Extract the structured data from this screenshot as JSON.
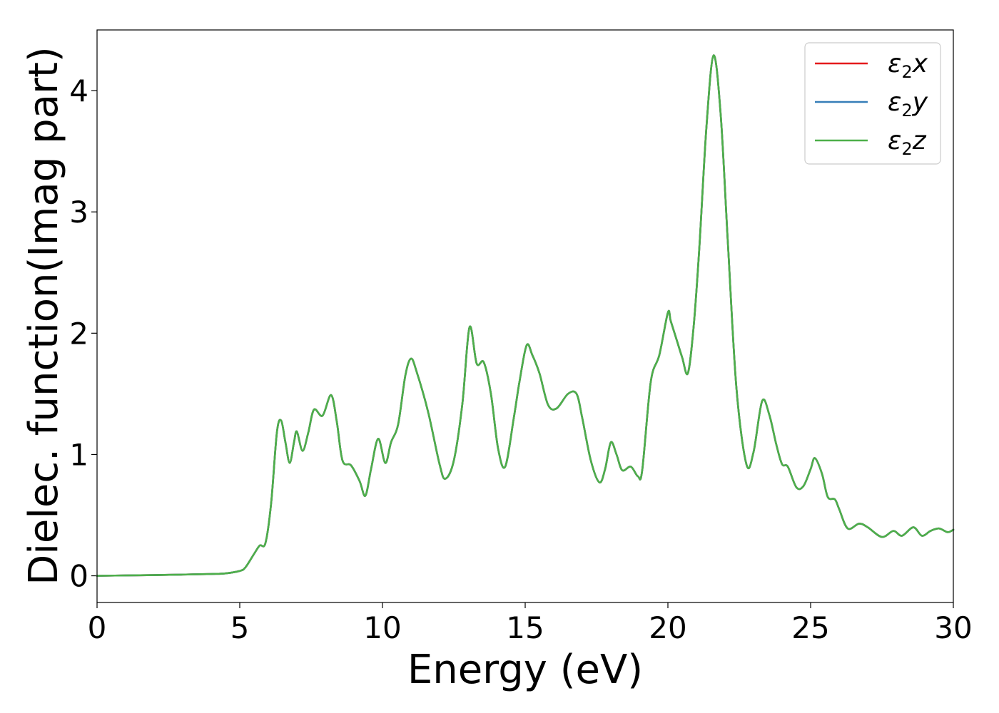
{
  "chart_data": {
    "type": "line",
    "title": "",
    "xlabel": "Energy (eV)",
    "ylabel": "Dielec. function(Imag part)",
    "xlim": [
      0,
      30
    ],
    "ylim": [
      -0.22,
      4.5
    ],
    "xticks": [
      0,
      5,
      10,
      15,
      20,
      25,
      30
    ],
    "yticks": [
      0,
      1,
      2,
      3,
      4
    ],
    "grid": false,
    "legend_position": "top-right",
    "series": [
      {
        "name": "ε2x",
        "legend": {
          "base": "ε",
          "sub": "2",
          "var": "x"
        },
        "color": "#e41a1c",
        "x": [
          0,
          1,
          2,
          3,
          4,
          4.5,
          5,
          5.2,
          5.5,
          5.7,
          5.9,
          6.1,
          6.3,
          6.45,
          6.6,
          6.75,
          6.9,
          7.0,
          7.2,
          7.4,
          7.6,
          7.9,
          8.2,
          8.4,
          8.6,
          8.9,
          9.2,
          9.4,
          9.6,
          9.85,
          10.1,
          10.3,
          10.55,
          10.8,
          11.0,
          11.2,
          11.6,
          12.0,
          12.2,
          12.5,
          12.8,
          13.05,
          13.3,
          13.55,
          13.8,
          14.05,
          14.3,
          14.6,
          14.8,
          15.05,
          15.25,
          15.5,
          15.8,
          16.1,
          16.5,
          16.8,
          17.0,
          17.3,
          17.6,
          17.8,
          18.0,
          18.2,
          18.4,
          18.7,
          18.95,
          19.1,
          19.4,
          19.7,
          20.0,
          20.1,
          20.3,
          20.5,
          20.7,
          20.9,
          21.1,
          21.35,
          21.6,
          21.85,
          22.1,
          22.4,
          22.75,
          23.0,
          23.3,
          23.55,
          23.8,
          24.0,
          24.2,
          24.5,
          24.75,
          25.0,
          25.15,
          25.4,
          25.6,
          25.85,
          26.0,
          26.3,
          26.7,
          27.0,
          27.5,
          27.9,
          28.2,
          28.6,
          28.9,
          29.2,
          29.5,
          29.8,
          30
        ],
        "y": [
          0.0,
          0.003,
          0.006,
          0.01,
          0.015,
          0.02,
          0.04,
          0.07,
          0.18,
          0.25,
          0.27,
          0.6,
          1.18,
          1.28,
          1.1,
          0.93,
          1.1,
          1.19,
          1.03,
          1.18,
          1.37,
          1.32,
          1.49,
          1.27,
          0.95,
          0.91,
          0.78,
          0.66,
          0.88,
          1.13,
          0.93,
          1.1,
          1.25,
          1.65,
          1.79,
          1.68,
          1.35,
          0.92,
          0.8,
          0.95,
          1.42,
          2.05,
          1.75,
          1.76,
          1.5,
          1.05,
          0.9,
          1.3,
          1.6,
          1.9,
          1.82,
          1.67,
          1.41,
          1.38,
          1.5,
          1.5,
          1.3,
          0.95,
          0.77,
          0.88,
          1.1,
          1.0,
          0.87,
          0.9,
          0.82,
          0.87,
          1.6,
          1.82,
          2.17,
          2.1,
          1.95,
          1.8,
          1.67,
          2.05,
          2.7,
          3.7,
          4.29,
          3.8,
          2.75,
          1.55,
          0.92,
          1.02,
          1.44,
          1.33,
          1.08,
          0.92,
          0.9,
          0.73,
          0.74,
          0.88,
          0.97,
          0.84,
          0.65,
          0.63,
          0.55,
          0.39,
          0.43,
          0.4,
          0.32,
          0.37,
          0.33,
          0.4,
          0.33,
          0.37,
          0.39,
          0.36,
          0.38
        ]
      },
      {
        "name": "ε2y",
        "legend": {
          "base": "ε",
          "sub": "2",
          "var": "y"
        },
        "color": "#377eb8",
        "same_as": "ε2x"
      },
      {
        "name": "ε2z",
        "legend": {
          "base": "ε",
          "sub": "2",
          "var": "z"
        },
        "color": "#4daf4a",
        "same_as": "ε2x"
      }
    ]
  }
}
